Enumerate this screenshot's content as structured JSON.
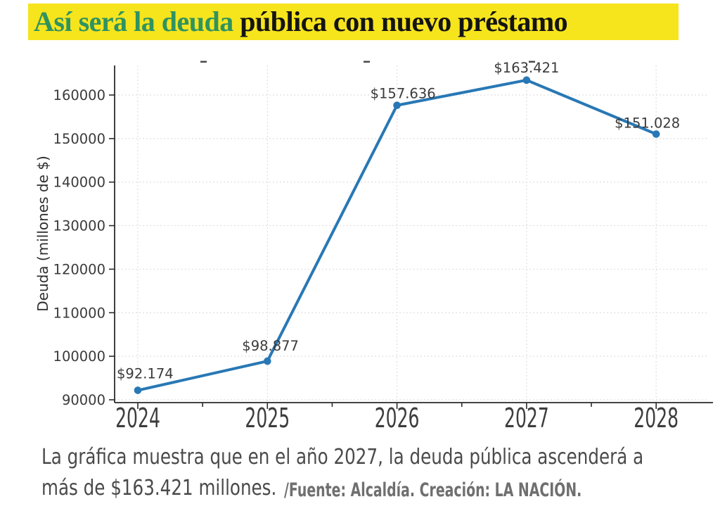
{
  "title": {
    "highlight": "Así será la deuda",
    "rest": " pública con nuevo préstamo",
    "highlight_color": "#2f9360",
    "band_color": "#f6e41d"
  },
  "chart_data": {
    "type": "line",
    "x": [
      "2024",
      "2025",
      "2026",
      "2027",
      "2028"
    ],
    "values": [
      92174,
      98877,
      157636,
      163421,
      151028
    ],
    "point_labels": [
      "$92.174",
      "$98.877",
      "$157.636",
      "$163.421",
      "$151.028"
    ],
    "title": "",
    "xlabel": "",
    "ylabel": "Deuda (millones de $)",
    "yticks": [
      90000,
      100000,
      110000,
      120000,
      130000,
      140000,
      150000,
      160000
    ],
    "ylim": [
      89400,
      166800
    ],
    "grid": true,
    "grid_style": "dashed",
    "legend": "none",
    "line_color": "#2878b5",
    "marker": "circle"
  },
  "caption": {
    "line1": "La gráfica muestra que en el año 2027, la deuda pública ascenderá a",
    "line2": "más de $163.421 millones.",
    "source": "/Fuente: Alcaldía. Creación: LA NACIÓN."
  }
}
